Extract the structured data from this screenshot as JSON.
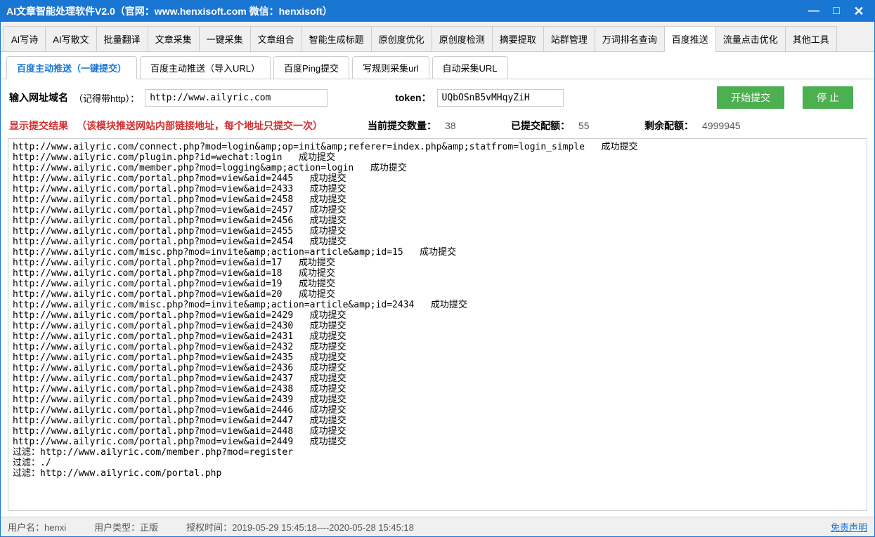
{
  "window": {
    "title": "AI文章智能处理软件V2.0（官网：www.henxisoft.com  微信：henxisoft）"
  },
  "main_tabs": [
    {
      "label": "AI写诗",
      "active": false
    },
    {
      "label": "AI写散文",
      "active": false
    },
    {
      "label": "批量翻译",
      "active": false
    },
    {
      "label": "文章采集",
      "active": false
    },
    {
      "label": "一键采集",
      "active": false
    },
    {
      "label": "文章组合",
      "active": false
    },
    {
      "label": "智能生成标题",
      "active": false
    },
    {
      "label": "原创度优化",
      "active": false
    },
    {
      "label": "原创度检测",
      "active": false
    },
    {
      "label": "摘要提取",
      "active": false
    },
    {
      "label": "站群管理",
      "active": false
    },
    {
      "label": "万词排名查询",
      "active": false
    },
    {
      "label": "百度推送",
      "active": true
    },
    {
      "label": "流量点击优化",
      "active": false
    },
    {
      "label": "其他工具",
      "active": false
    }
  ],
  "sub_tabs": [
    {
      "label": "百度主动推送（一键提交）",
      "active": true
    },
    {
      "label": "百度主动推送（导入URL）",
      "active": false
    },
    {
      "label": "百度Ping提交",
      "active": false
    },
    {
      "label": "写规则采集url",
      "active": false
    },
    {
      "label": "自动采集URL",
      "active": false
    }
  ],
  "form": {
    "url_label": "输入网址域名",
    "url_hint": "（记得带http）：",
    "url_value": "http://www.ailyric.com",
    "token_label": "token：",
    "token_value": "UQbOSnB5vMHqyZiH",
    "start_btn": "开始提交",
    "stop_btn": "停  止"
  },
  "status": {
    "result_label": "显示提交结果",
    "result_hint": "（该模块推送网站内部链接地址，每个地址只提交一次）",
    "current_label": "当前提交数量：",
    "current_value": "38",
    "submitted_label": "已提交配额：",
    "submitted_value": "55",
    "remain_label": "剩余配额：",
    "remain_value": "4999945"
  },
  "log": [
    "http://www.ailyric.com/connect.php?mod=login&amp;op=init&amp;referer=index.php&amp;statfrom=login_simple   成功提交",
    "http://www.ailyric.com/plugin.php?id=wechat:login   成功提交",
    "http://www.ailyric.com/member.php?mod=logging&amp;action=login   成功提交",
    "http://www.ailyric.com/portal.php?mod=view&aid=2445   成功提交",
    "http://www.ailyric.com/portal.php?mod=view&aid=2433   成功提交",
    "http://www.ailyric.com/portal.php?mod=view&aid=2458   成功提交",
    "http://www.ailyric.com/portal.php?mod=view&aid=2457   成功提交",
    "http://www.ailyric.com/portal.php?mod=view&aid=2456   成功提交",
    "http://www.ailyric.com/portal.php?mod=view&aid=2455   成功提交",
    "http://www.ailyric.com/portal.php?mod=view&aid=2454   成功提交",
    "http://www.ailyric.com/misc.php?mod=invite&amp;action=article&amp;id=15   成功提交",
    "http://www.ailyric.com/portal.php?mod=view&aid=17   成功提交",
    "http://www.ailyric.com/portal.php?mod=view&aid=18   成功提交",
    "http://www.ailyric.com/portal.php?mod=view&aid=19   成功提交",
    "http://www.ailyric.com/portal.php?mod=view&aid=20   成功提交",
    "http://www.ailyric.com/misc.php?mod=invite&amp;action=article&amp;id=2434   成功提交",
    "http://www.ailyric.com/portal.php?mod=view&aid=2429   成功提交",
    "http://www.ailyric.com/portal.php?mod=view&aid=2430   成功提交",
    "http://www.ailyric.com/portal.php?mod=view&aid=2431   成功提交",
    "http://www.ailyric.com/portal.php?mod=view&aid=2432   成功提交",
    "http://www.ailyric.com/portal.php?mod=view&aid=2435   成功提交",
    "http://www.ailyric.com/portal.php?mod=view&aid=2436   成功提交",
    "http://www.ailyric.com/portal.php?mod=view&aid=2437   成功提交",
    "http://www.ailyric.com/portal.php?mod=view&aid=2438   成功提交",
    "http://www.ailyric.com/portal.php?mod=view&aid=2439   成功提交",
    "http://www.ailyric.com/portal.php?mod=view&aid=2446   成功提交",
    "http://www.ailyric.com/portal.php?mod=view&aid=2447   成功提交",
    "http://www.ailyric.com/portal.php?mod=view&aid=2448   成功提交",
    "http://www.ailyric.com/portal.php?mod=view&aid=2449   成功提交",
    "",
    "过滤：http://www.ailyric.com/member.php?mod=register",
    "过滤：./",
    "过滤：http://www.ailyric.com/portal.php"
  ],
  "statusbar": {
    "user_label": "用户名：",
    "user_value": "henxi",
    "type_label": "用户类型：",
    "type_value": "正版",
    "auth_label": "授权时间：",
    "auth_value": "2019-05-29 15:45:18----2020-05-28 15:45:18",
    "disclaimer": "免责声明"
  }
}
